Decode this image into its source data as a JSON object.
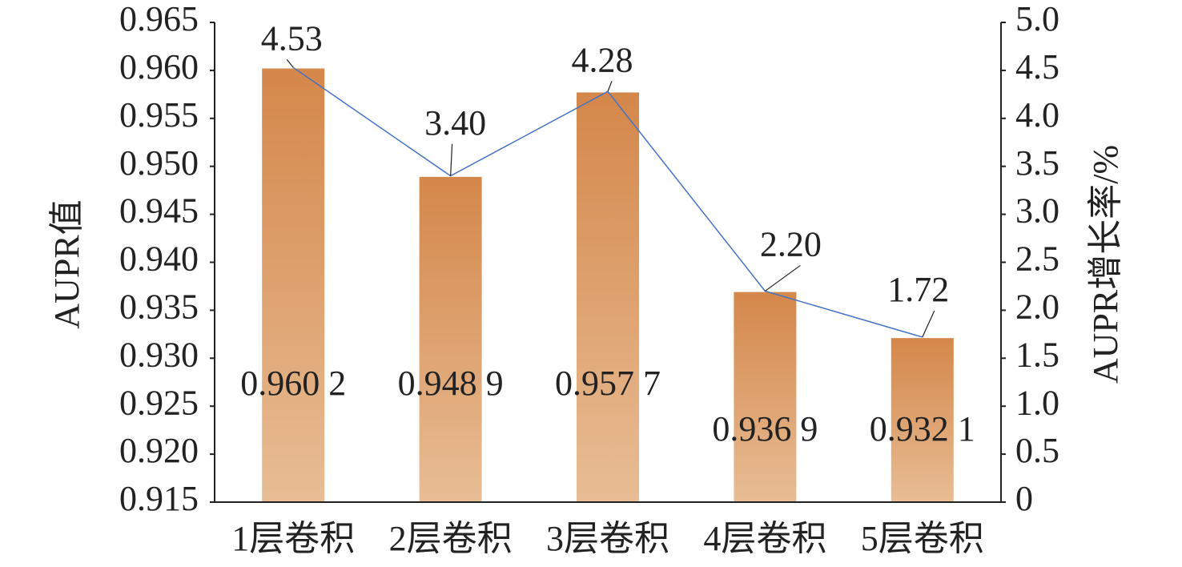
{
  "chart_data": {
    "type": "bar-line",
    "categories": [
      "1层卷积",
      "2层卷积",
      "3层卷积",
      "4层卷积",
      "5层卷积"
    ],
    "y_label": "AUPR值",
    "y2_label": "AUPR增长率/%",
    "ylim": [
      0.915,
      0.965
    ],
    "yticks": [
      0.915,
      {
        "value": 0.92,
        "label": "0.920"
      },
      0.925,
      {
        "value": 0.93,
        "label": "0.930"
      },
      0.935,
      {
        "value": 0.94,
        "label": "0.940"
      },
      0.945,
      {
        "value": 0.95,
        "label": "0.950"
      },
      0.955,
      {
        "value": 0.96,
        "label": "0.960"
      },
      0.965
    ],
    "y2lim": [
      0,
      5
    ],
    "y2ticks": [
      0,
      0.5,
      {
        "value": 1,
        "label": "1.0"
      },
      1.5,
      {
        "value": 2,
        "label": "2.0"
      },
      2.5,
      {
        "value": 3,
        "label": "3.0"
      },
      3.5,
      {
        "value": 4,
        "label": "4.0"
      },
      4.5,
      {
        "value": 5,
        "label": "5.0"
      }
    ],
    "series": [
      {
        "type": "bar",
        "color": "#d4874a",
        "values": [
          0.9602,
          0.9489,
          0.9577,
          0.9369,
          0.9321
        ],
        "value_labels": [
          "0.960 2",
          "0.948 9",
          "0.957 7",
          "0.936 9",
          "0.932 1"
        ]
      },
      {
        "type": "line",
        "axis": "y2",
        "color": "#4472c4",
        "values": [
          4.53,
          3.4,
          4.28,
          2.2,
          1.72
        ],
        "value_labels": [
          "4.53",
          "3.40",
          "4.28",
          "2.20",
          "1.72"
        ]
      }
    ]
  }
}
